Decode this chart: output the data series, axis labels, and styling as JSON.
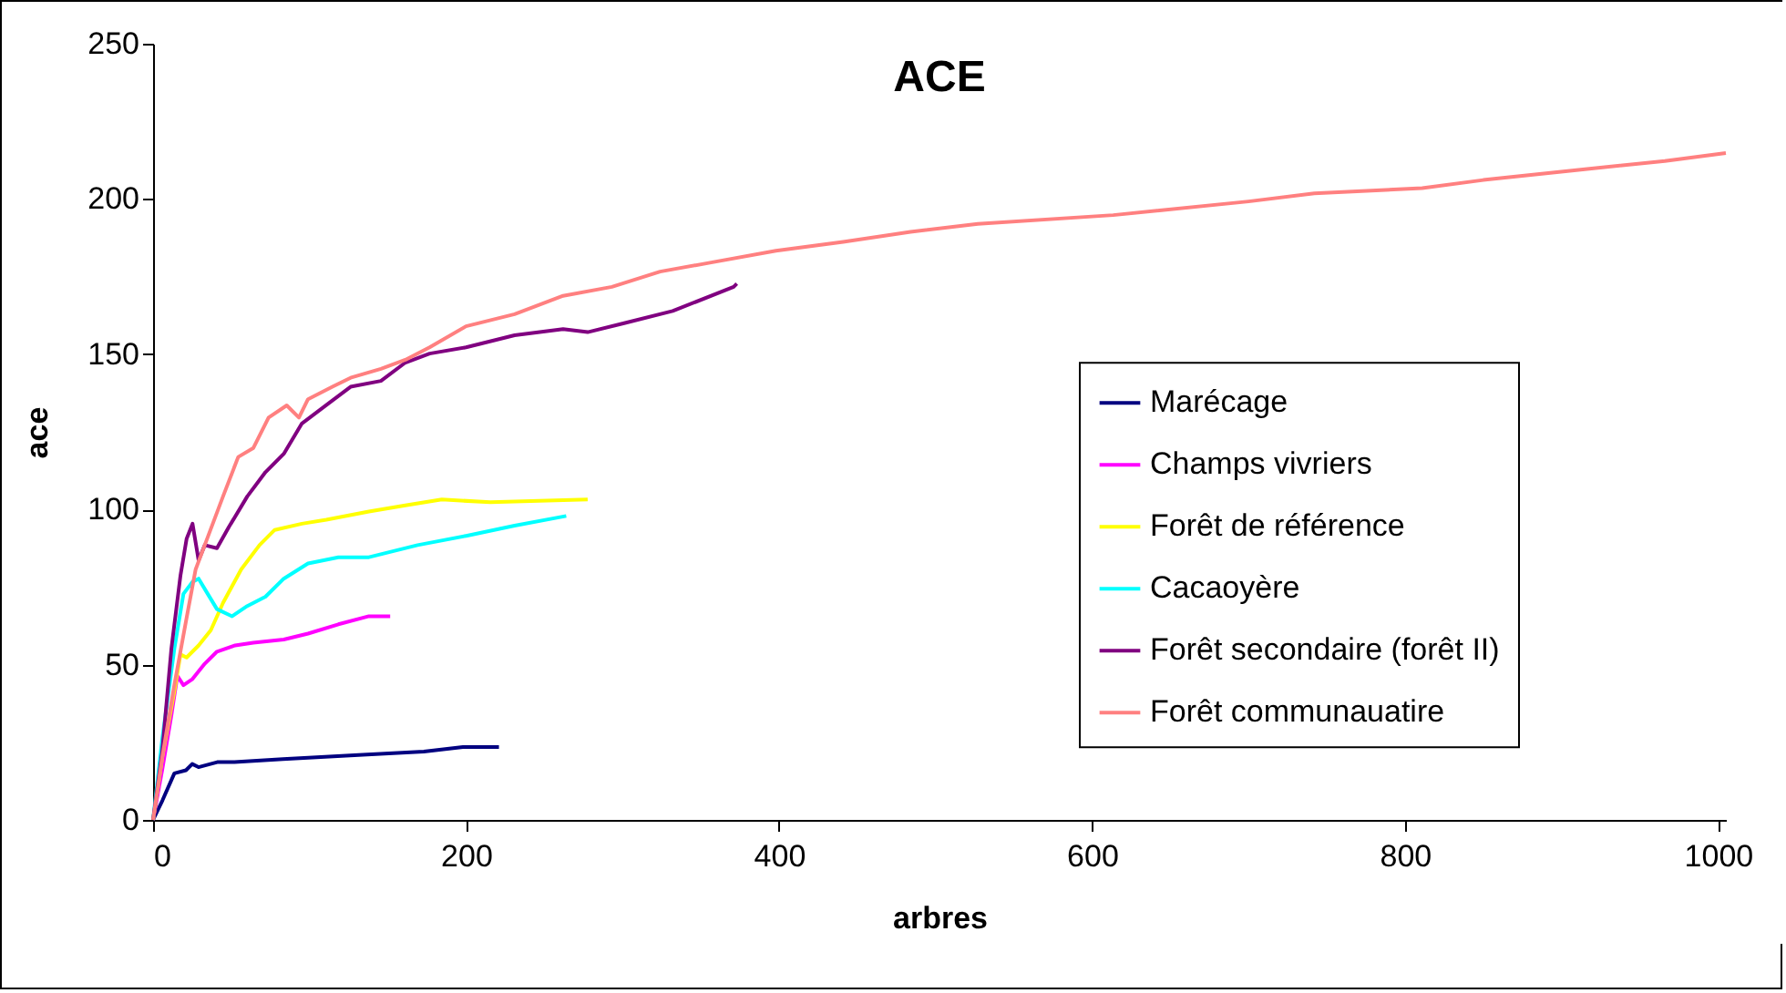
{
  "chart_data": {
    "type": "line",
    "title": "ACE",
    "xlabel": "arbres",
    "ylabel": "ace",
    "xlim": [
      0,
      1005
    ],
    "xticks": [
      0,
      200,
      400,
      600,
      800,
      1000
    ],
    "ylim": [
      0,
      250
    ],
    "yticks": [
      0,
      50,
      100,
      150,
      200,
      250
    ],
    "grid": false,
    "legend": "right",
    "marker": "none",
    "line_style": "solid",
    "series": [
      {
        "name": "Marécage",
        "color": "#000080",
        "x": [
          0,
          6,
          13.6,
          21,
          25,
          29,
          41,
          52,
          83,
          134,
          173,
          198,
          221
        ],
        "values": [
          0,
          6.3,
          15,
          16,
          18,
          17,
          18.6,
          18.6,
          19.6,
          21,
          22,
          23.5,
          23.5
        ]
      },
      {
        "name": "Champs vivriers",
        "color": "#ff00ff",
        "x": [
          0,
          5.8,
          11.7,
          15.5,
          19.4,
          25.2,
          33,
          40.8,
          52.4,
          64,
          83.5,
          99,
          118.4,
          137.9,
          151.5
        ],
        "values": [
          0,
          16,
          33.7,
          46.4,
          43.4,
          45.4,
          50.3,
          54.2,
          56.2,
          57.1,
          58.1,
          60,
          63,
          65.6,
          65.6
        ]
      },
      {
        "name": "Forêt de référence",
        "color": "#ffff00",
        "x": [
          0,
          5.8,
          13.6,
          17.5,
          21.4,
          29.1,
          36.9,
          44.7,
          56.3,
          68,
          77.7,
          95.1,
          110.7,
          137.9,
          161.2,
          184.5,
          215.5,
          277.7
        ],
        "values": [
          0,
          20,
          41.5,
          53.3,
          52.3,
          56.2,
          61.1,
          69.9,
          80.7,
          88.5,
          93.4,
          95.4,
          96.7,
          99.3,
          101.3,
          103.2,
          102.3,
          103.2
        ]
      },
      {
        "name": "Cacaoyère",
        "color": "#00ffff",
        "x": [
          0,
          5.8,
          13.6,
          19.4,
          25.2,
          29.1,
          34.9,
          40.8,
          50.5,
          60.2,
          71.8,
          83.5,
          99,
          118.4,
          137.9,
          169,
          200,
          231,
          264
        ],
        "values": [
          0,
          25.8,
          55.2,
          72.8,
          76.7,
          77.7,
          72.8,
          67.9,
          65.6,
          68.9,
          71.9,
          77.7,
          82.6,
          84.6,
          84.6,
          88.5,
          91.5,
          94.8,
          97.9
        ]
      },
      {
        "name": "Forêt secondaire (forêt II)",
        "color": "#800080",
        "x": [
          0,
          5.8,
          11.7,
          17.5,
          21.4,
          25.2,
          29.1,
          33,
          40.8,
          48.5,
          60.2,
          71.8,
          83.5,
          95.1,
          110.7,
          126.2,
          145.6,
          161.2,
          176.7,
          200,
          231,
          262,
          277.7,
          301,
          332,
          371,
          373
        ],
        "values": [
          0,
          21.9,
          55.2,
          78.7,
          90.5,
          95.4,
          83.6,
          88.5,
          87.5,
          94.4,
          104.2,
          112,
          117.9,
          127.7,
          133.6,
          139.5,
          141.4,
          147.3,
          150.2,
          152.2,
          156.1,
          158.1,
          157.1,
          160,
          163.9,
          171.7,
          172.7
        ]
      },
      {
        "name": "Forêt communauatire",
        "color": "#ff8080",
        "x": [
          0,
          5.8,
          13.6,
          21.4,
          27.2,
          33,
          44.7,
          54.4,
          64.1,
          73.8,
          85.4,
          93.2,
          99,
          114.6,
          126.2,
          145.6,
          161.2,
          176.7,
          200,
          231,
          262,
          293.2,
          324,
          355,
          398,
          441,
          484,
          527,
          613.5,
          700,
          742,
          811,
          850,
          915,
          966,
          1005
        ],
        "values": [
          0,
          20,
          43.5,
          65,
          80.7,
          88.5,
          104.2,
          116.9,
          119.8,
          129.6,
          133.5,
          129.6,
          135.5,
          139.5,
          142.4,
          145.3,
          148.2,
          152.2,
          159,
          162.9,
          168.8,
          171.7,
          176.6,
          179.4,
          183.3,
          186.2,
          189.4,
          192,
          194.8,
          199.2,
          201.8,
          203.5,
          206.1,
          209.6,
          212.2,
          214.8
        ]
      }
    ]
  }
}
